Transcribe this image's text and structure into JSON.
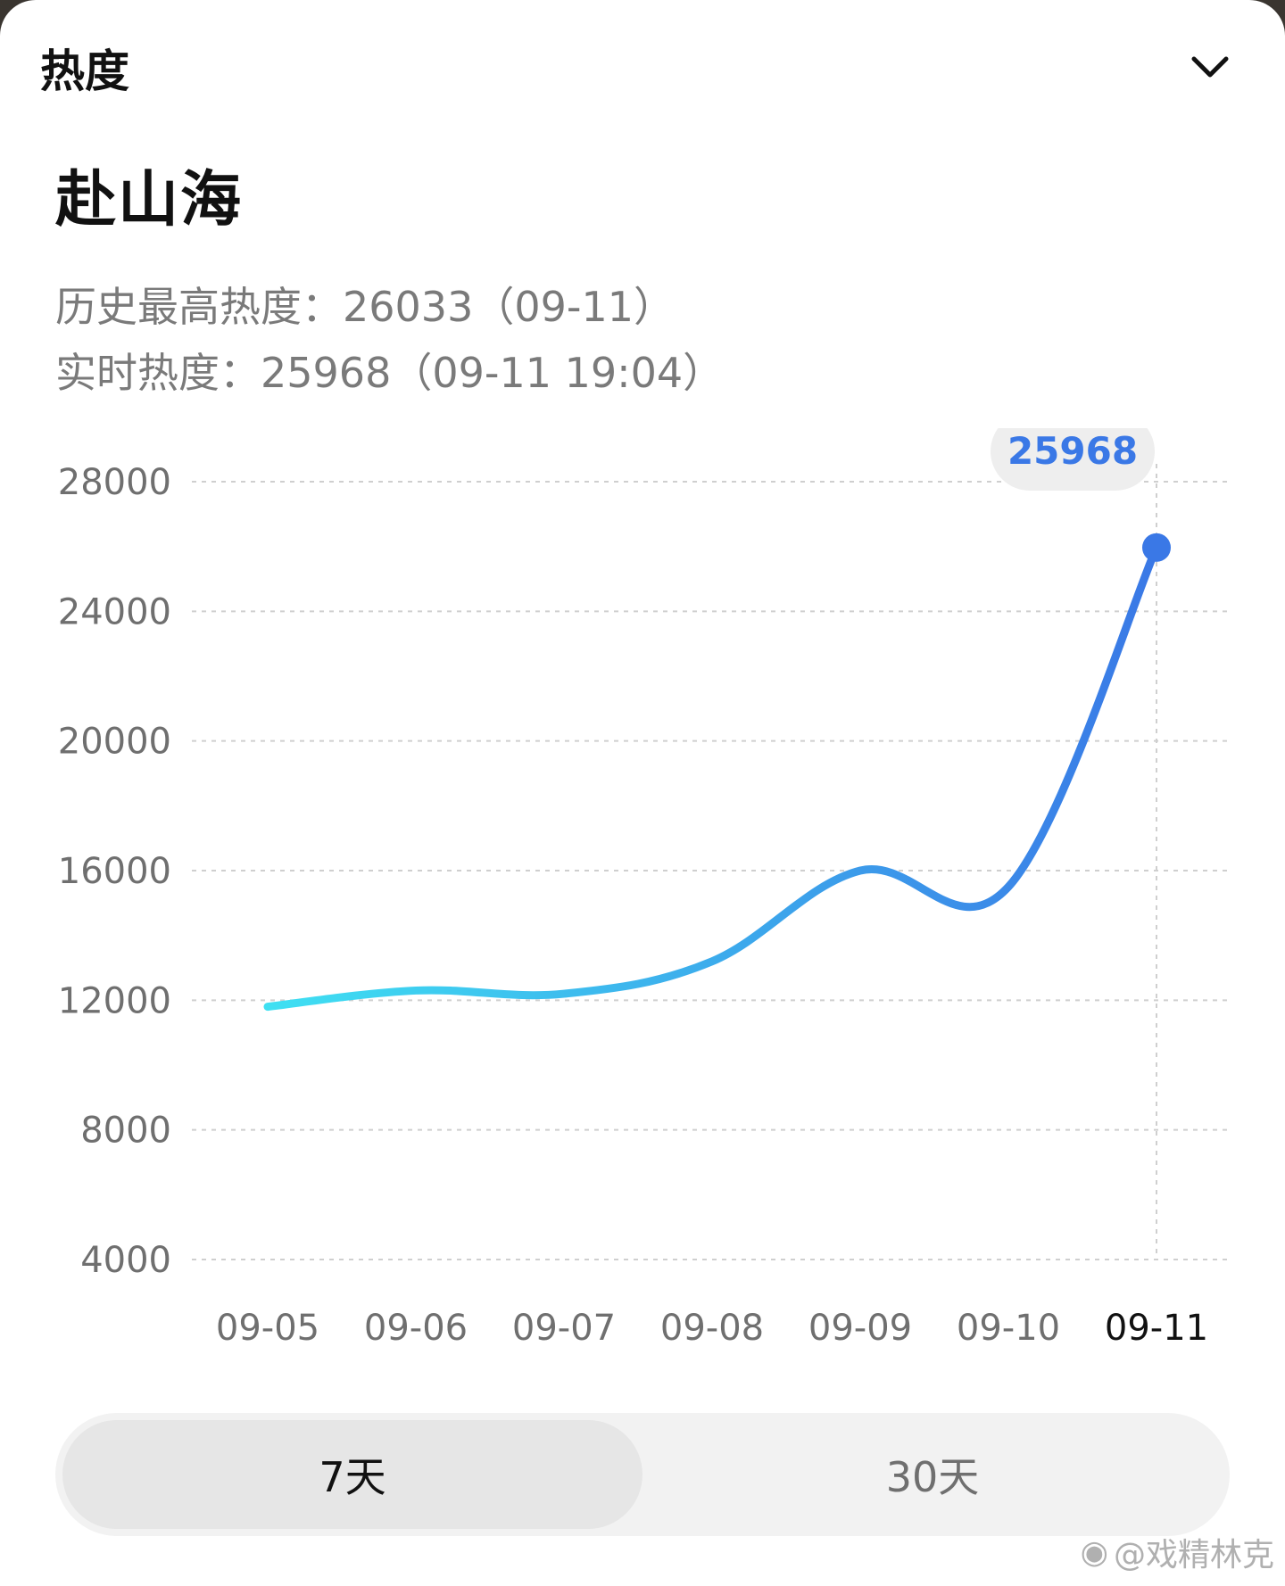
{
  "header": {
    "title": "热度"
  },
  "show": {
    "title": "赴山海"
  },
  "stats": {
    "peak": "历史最高热度：26033（09-11）",
    "live": "实时热度：25968（09-11 19:04）"
  },
  "chart_data": {
    "type": "line",
    "x": [
      "09-05",
      "09-06",
      "09-07",
      "09-08",
      "09-09",
      "09-10",
      "09-11"
    ],
    "values": [
      11800,
      12300,
      12200,
      13200,
      16000,
      15500,
      25968
    ],
    "yticks": [
      28000,
      24000,
      20000,
      16000,
      12000,
      8000,
      4000
    ],
    "ylim": [
      4000,
      28000
    ],
    "grid": true,
    "highlight": {
      "index": 6,
      "label": "25968"
    },
    "colors": {
      "line_start": "#3fe0f2",
      "line_end": "#3a78e6",
      "grid": "#cfcfcf"
    }
  },
  "range_tabs": {
    "option_7": "7天",
    "option_30": "30天"
  },
  "watermark": "@戏精林克"
}
